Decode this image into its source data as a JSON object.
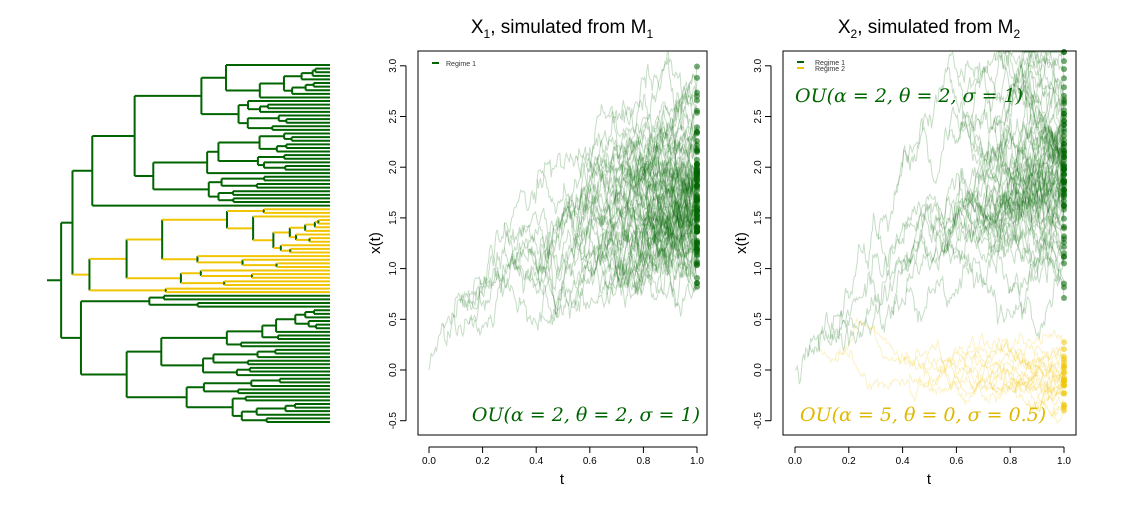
{
  "colors": {
    "regime1": "#006400",
    "regime2": "#f0c400"
  },
  "tree": {
    "tips": 100,
    "regime2_clade_tips": 24
  },
  "chart_data": [
    {
      "type": "line",
      "title": {
        "main": "X",
        "sub1": "1",
        "mid": ", simulated from M",
        "sub2": "1"
      },
      "xlabel": "t",
      "ylabel": "x(t)",
      "xlim": [
        0,
        1
      ],
      "ylim": [
        -0.6,
        3.15
      ],
      "xticks": [
        "0.0",
        "0.2",
        "0.4",
        "0.6",
        "0.8",
        "1.0"
      ],
      "yticks": [
        "-0.5",
        "0.0",
        "0.5",
        "1.0",
        "1.5",
        "2.0",
        "2.5",
        "3.0"
      ],
      "legend": {
        "placement": "top-left",
        "entries": [
          "Regime 1"
        ]
      },
      "annotations": [
        {
          "text": "OU(α = 2, θ = 2, σ = 1)",
          "color": "#006400",
          "placement": "bottom-right"
        }
      ],
      "models": {
        "regime1": {
          "alpha": 2,
          "theta": 2,
          "sigma": 1
        }
      },
      "root_value": 0,
      "series_count": 100
    },
    {
      "type": "line",
      "title": {
        "main": "X",
        "sub1": "2",
        "mid": ", simulated from M",
        "sub2": "2"
      },
      "xlabel": "t",
      "ylabel": "x(t)",
      "xlim": [
        0,
        1
      ],
      "ylim": [
        -0.6,
        3.15
      ],
      "xticks": [
        "0.0",
        "0.2",
        "0.4",
        "0.6",
        "0.8",
        "1.0"
      ],
      "yticks": [
        "-0.5",
        "0.0",
        "0.5",
        "1.0",
        "1.5",
        "2.0",
        "2.5",
        "3.0"
      ],
      "legend": {
        "placement": "top-left",
        "entries": [
          "Regime 1",
          "Regime 2"
        ]
      },
      "annotations": [
        {
          "text": "OU(α = 2, θ = 2, σ = 1)",
          "color": "#006400",
          "placement": "top-left"
        },
        {
          "text": "OU(α = 5, θ = 0, σ = 0.5)",
          "color": "#e0b800",
          "placement": "bottom-left"
        }
      ],
      "models": {
        "regime1": {
          "alpha": 2,
          "theta": 2,
          "sigma": 1
        },
        "regime2": {
          "alpha": 5,
          "theta": 0,
          "sigma": 0.5
        }
      },
      "root_value": 0,
      "series_count": 100
    }
  ]
}
